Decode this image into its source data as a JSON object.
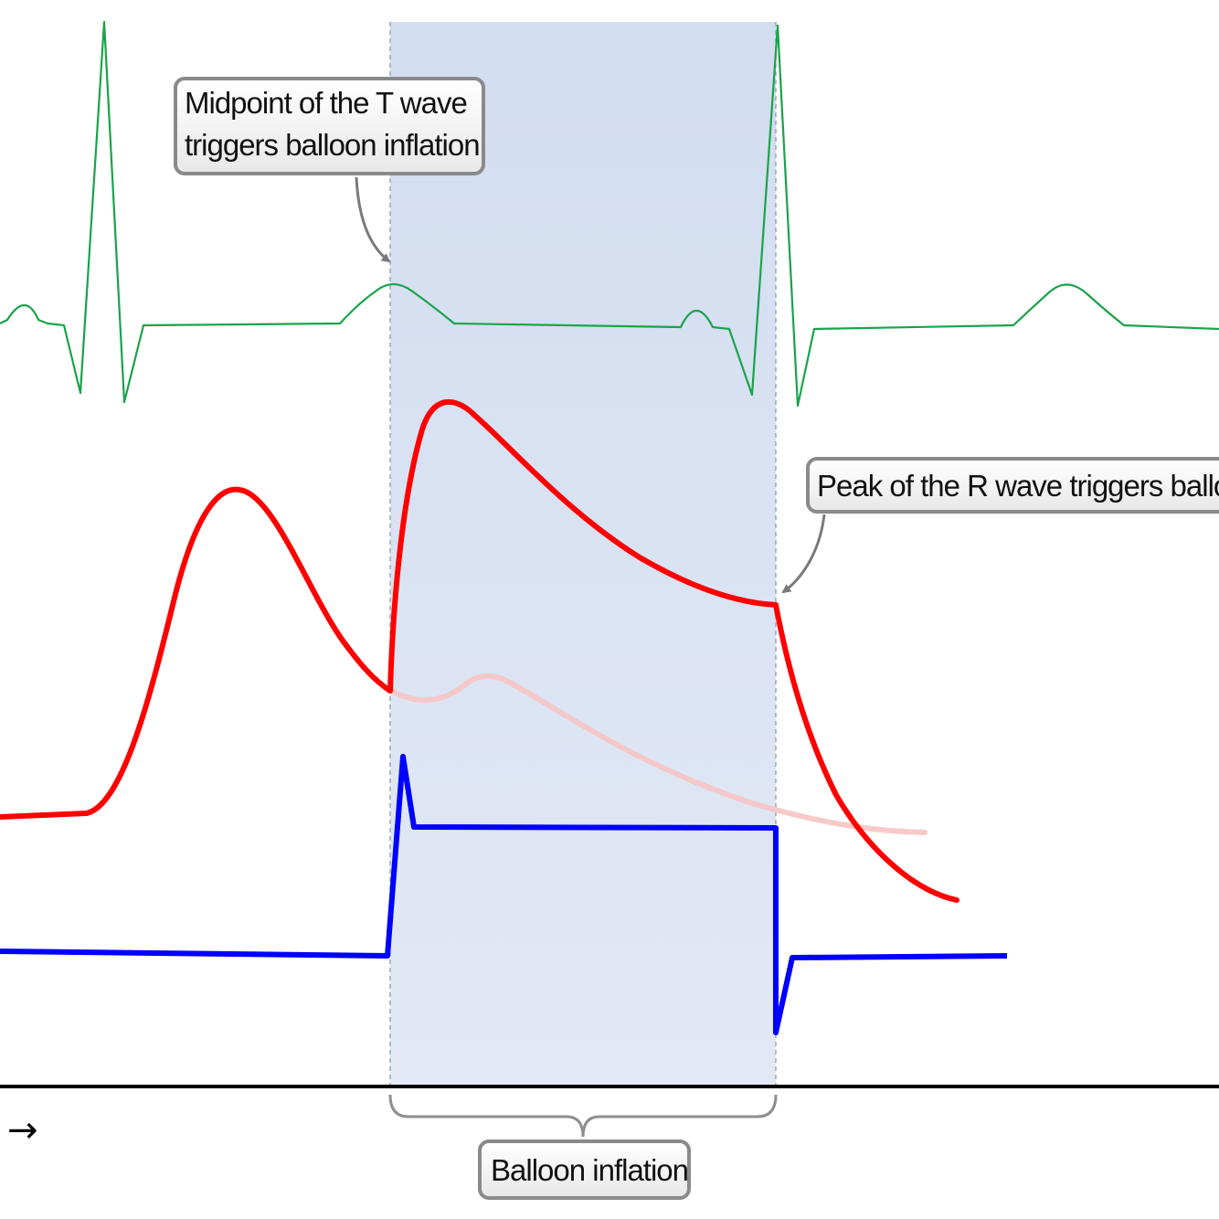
{
  "annotations": {
    "t_wave_line1": "Midpoint of the T wave",
    "t_wave_line2": "triggers balloon inflation",
    "r_wave": "Peak of the R wave triggers balloo",
    "balloon": "Balloon inflation"
  },
  "axis": {
    "arrow_glyph": "→"
  },
  "colors": {
    "ecg": "#1aa34a",
    "arterial_pressure": "#ff0000",
    "arterial_pressure_unassisted": "#f6c4c4",
    "balloon_pressure": "#0000ff",
    "inflation_band": "#d4dff0",
    "callout_border": "#8a8a8a"
  }
}
